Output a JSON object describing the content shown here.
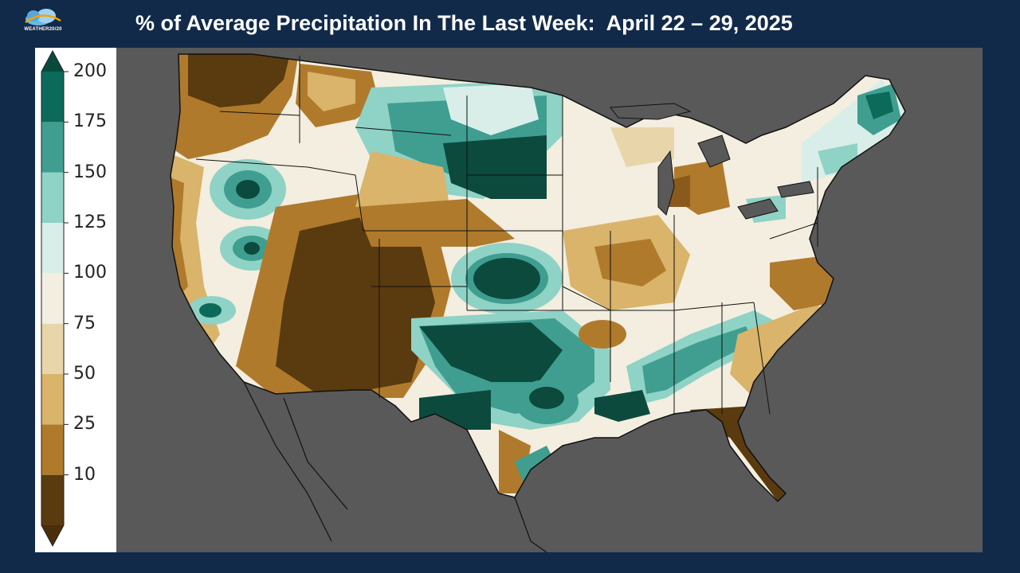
{
  "header": {
    "logo_text": "WEATHER20/20",
    "title": "% of Average Precipitation In The Last Week:  April 22 – 29, 2025"
  },
  "legend": {
    "ticks": [
      "200",
      "175",
      "150",
      "125",
      "100",
      "75",
      "50",
      "25",
      "10"
    ],
    "bins": [
      {
        "range": "10-25",
        "color": "#5a3a0f"
      },
      {
        "range": "25-50",
        "color": "#b07a2c"
      },
      {
        "range": "50-75",
        "color": "#d9b46a"
      },
      {
        "range": "75-100",
        "color": "#e8d6aa"
      },
      {
        "range": "100-125",
        "color": "#f3eedf"
      },
      {
        "range": "125-150",
        "color": "#d9eee9"
      },
      {
        "range": "150-175",
        "color": "#8fd2c6"
      },
      {
        "range": "175-200",
        "color": "#3f9e90"
      },
      {
        "range": ">200",
        "color": "#0c6a5b"
      }
    ],
    "low_color": "#4a2e0a",
    "high_color": "#0a4a3e"
  },
  "map": {
    "background_color": "#595959",
    "region": "Contiguous United States"
  }
}
